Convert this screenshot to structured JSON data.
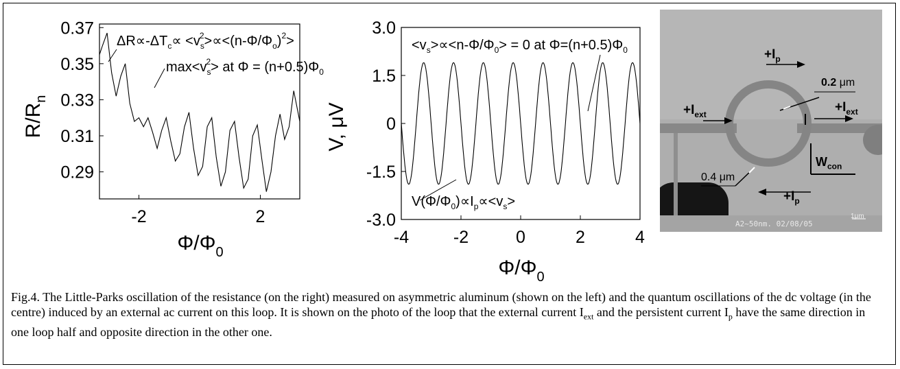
{
  "chart_data": [
    {
      "type": "line",
      "xlabel_main": "Φ/Φ",
      "xlabel_sub": "0",
      "ylabel_main": "R/R",
      "ylabel_sub": "n",
      "xlim": [
        -3.3,
        3.3
      ],
      "ylim": [
        0.275,
        0.372
      ],
      "x_ticks": [
        -2,
        2
      ],
      "y_ticks": [
        0.29,
        0.31,
        0.33,
        0.35,
        0.37
      ],
      "x_tick_labels": [
        "-2",
        "2"
      ],
      "y_tick_labels": [
        "0.29",
        "0.31",
        "0.33",
        "0.35",
        "0.37"
      ],
      "series": [
        {
          "x": [
            -3.3,
            -3.2,
            -3.05,
            -2.9,
            -2.75,
            -2.6,
            -2.45,
            -2.3,
            -2.15,
            -2.0,
            -1.85,
            -1.7,
            -1.55,
            -1.4,
            -1.25,
            -1.1,
            -0.95,
            -0.8,
            -0.65,
            -0.5,
            -0.35,
            -0.2,
            -0.05,
            0.1,
            0.25,
            0.4,
            0.55,
            0.7,
            0.85,
            1.0,
            1.15,
            1.3,
            1.45,
            1.6,
            1.75,
            1.9,
            2.05,
            2.2,
            2.35,
            2.5,
            2.65,
            2.8,
            2.95,
            3.1,
            3.3
          ],
          "y": [
            0.355,
            0.36,
            0.367,
            0.345,
            0.332,
            0.343,
            0.35,
            0.328,
            0.318,
            0.32,
            0.315,
            0.32,
            0.312,
            0.303,
            0.313,
            0.32,
            0.307,
            0.296,
            0.3,
            0.315,
            0.323,
            0.303,
            0.288,
            0.293,
            0.315,
            0.32,
            0.298,
            0.282,
            0.29,
            0.313,
            0.318,
            0.298,
            0.281,
            0.286,
            0.31,
            0.316,
            0.297,
            0.279,
            0.29,
            0.31,
            0.322,
            0.308,
            0.315,
            0.335,
            0.318
          ]
        }
      ],
      "annotations": {
        "a1": "ΔR∝-ΔT",
        "a1_sub": "c",
        "a2": "∝ <v",
        "a2_sub": "s",
        "a2_sup": "2",
        "a3": ">∝<(n-Φ/Φ",
        "a3_sub": "o",
        "a4": ")",
        "a4_sup": "2",
        "a5": ">",
        "b1": "max<v",
        "b1_sub": "s",
        "b1_sup": "2",
        "b2": "> at Φ = (n+0.5)Φ",
        "b2_sub": "0"
      }
    },
    {
      "type": "line",
      "xlabel_main": "Φ/Φ",
      "xlabel_sub": "0",
      "ylabel": "V, μV",
      "xlim": [
        -4,
        4
      ],
      "ylim": [
        -3.0,
        3.0
      ],
      "x_ticks": [
        -4,
        -2,
        0,
        2,
        4
      ],
      "y_ticks": [
        -3.0,
        -1.5,
        0,
        1.5,
        3.0
      ],
      "x_tick_labels": [
        "-4",
        "-2",
        "0",
        "2",
        "4"
      ],
      "y_tick_labels": [
        "-3.0",
        "-1.5",
        "0",
        "1.5",
        "3.0"
      ],
      "amplitude": 1.9,
      "period": 1.0,
      "phase": 0.75,
      "annotations": {
        "a1": "<v",
        "a1_sub": "s",
        "a2": ">∝<n-Φ/Φ",
        "a2_sub": "0",
        "a3": "> = 0 at Φ=(n+0.5)Φ",
        "a3_sub": "0",
        "b1": "V(Φ/Φ",
        "b1_sub": "0",
        "b2": ")∝I",
        "b2_sub": "p",
        "b3": "∝<v",
        "b3_sub": "s",
        "b4": ">"
      }
    }
  ],
  "photo": {
    "ip_top": "+I",
    "ip_top_sub": "p",
    "ip_bottom": "+I",
    "ip_bottom_sub": "p",
    "iext_left": "+I",
    "iext_left_sub": "ext",
    "iext_right": "+I",
    "iext_right_sub": "ext",
    "width_02": "0.2",
    "width_02_unit": "μm",
    "width_04": "0.4 μm",
    "wcon": "W",
    "wcon_sub": "con",
    "footer": "A2~50nm. 02/08/05",
    "scale": "1μm"
  },
  "caption": {
    "part1": "Fig.4. The Little-Parks oscillation of the resistance (on the right) measured on asymmetric aluminum (shown on the left) and the quantum oscillations of the dc voltage (in the centre) induced by an external ac current on this loop. It is shown on the photo of the loop that the external current I",
    "sub1": "ext",
    "part2": " and the persistent current I",
    "sub2": "p",
    "part3": " have the same direction in one loop half and opposite direction in the other one."
  }
}
